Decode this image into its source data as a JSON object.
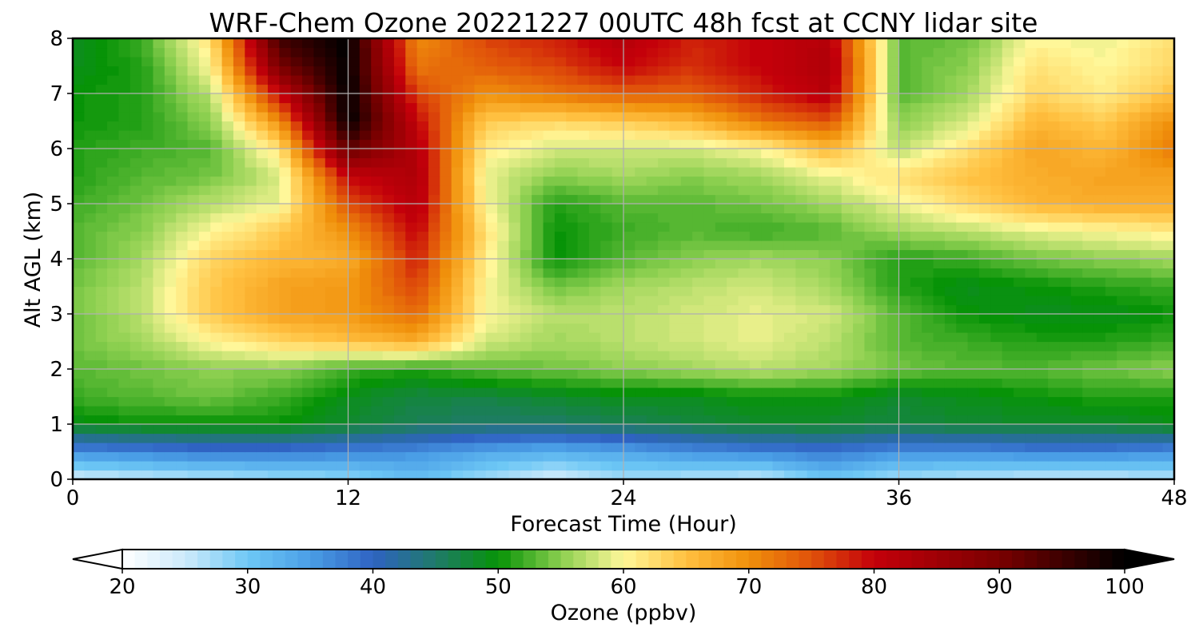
{
  "chart_data": {
    "type": "heatmap",
    "title": "WRF-Chem Ozone  20221227 00UTC 48h fcst at CCNY lidar site",
    "xlabel": "Forecast Time (Hour)",
    "ylabel": "Alt AGL (km)",
    "xlim": [
      0,
      48
    ],
    "ylim": [
      0,
      8
    ],
    "x_ticks": [
      0,
      12,
      24,
      36,
      48
    ],
    "y_ticks": [
      0,
      1,
      2,
      3,
      4,
      5,
      6,
      7,
      8
    ],
    "grid": true,
    "z_label": "Ozone  (ppbv)",
    "z_range": [
      20,
      100
    ],
    "colorbar": {
      "orientation": "horizontal",
      "placement": "bottom",
      "extend": "both",
      "ticks": [
        20,
        30,
        40,
        50,
        60,
        70,
        80,
        90,
        100
      ],
      "label": "Ozone  (ppbv)",
      "color_stops": [
        {
          "v": 20,
          "c": "#ffffff"
        },
        {
          "v": 25,
          "c": "#cdeafa"
        },
        {
          "v": 30,
          "c": "#6ec8f5"
        },
        {
          "v": 35,
          "c": "#4a9ee6"
        },
        {
          "v": 40,
          "c": "#2f63c2"
        },
        {
          "v": 45,
          "c": "#1f7a6a"
        },
        {
          "v": 50,
          "c": "#079307"
        },
        {
          "v": 55,
          "c": "#8bcf4f"
        },
        {
          "v": 60,
          "c": "#fff799"
        },
        {
          "v": 65,
          "c": "#ffc040"
        },
        {
          "v": 70,
          "c": "#f0900b"
        },
        {
          "v": 75,
          "c": "#e0520a"
        },
        {
          "v": 80,
          "c": "#c4000a"
        },
        {
          "v": 90,
          "c": "#7a0000"
        },
        {
          "v": 100,
          "c": "#000000"
        }
      ]
    },
    "x": [
      0,
      3,
      6,
      9,
      12,
      15,
      18,
      21,
      24,
      27,
      30,
      33,
      36,
      39,
      42,
      45,
      48
    ],
    "y": [
      0,
      0.5,
      1,
      1.5,
      2,
      2.5,
      3,
      3.5,
      4,
      4.5,
      5,
      5.5,
      6,
      6.5,
      7,
      7.5,
      8
    ],
    "z": [
      [
        24,
        25,
        26,
        27,
        28,
        31,
        27,
        24,
        27,
        26,
        25,
        30,
        27,
        26,
        25,
        25,
        26
      ],
      [
        36,
        37,
        38,
        38,
        37,
        36,
        34,
        33,
        34,
        36,
        37,
        38,
        36,
        36,
        37,
        37,
        36
      ],
      [
        49,
        50,
        50,
        50,
        48,
        46,
        45,
        45,
        46,
        47,
        48,
        48,
        47,
        48,
        48,
        48,
        49
      ],
      [
        52,
        53,
        54,
        52,
        49,
        47,
        47,
        48,
        49,
        49,
        50,
        50,
        48,
        49,
        50,
        51,
        51
      ],
      [
        53,
        54,
        55,
        55,
        52,
        51,
        53,
        54,
        55,
        56,
        57,
        56,
        54,
        53,
        53,
        54,
        55
      ],
      [
        54,
        56,
        60,
        63,
        65,
        67,
        58,
        56,
        57,
        58,
        59,
        57,
        53,
        52,
        51,
        51,
        52
      ],
      [
        54,
        57,
        64,
        68,
        69,
        73,
        60,
        57,
        57,
        58,
        59,
        58,
        53,
        50,
        49,
        49,
        50
      ],
      [
        54,
        57,
        64,
        68,
        69,
        76,
        60,
        54,
        56,
        57,
        58,
        56,
        51,
        49,
        50,
        51,
        52
      ],
      [
        53,
        56,
        63,
        66,
        67,
        78,
        61,
        50,
        53,
        55,
        56,
        55,
        51,
        52,
        54,
        55,
        56
      ],
      [
        53,
        55,
        60,
        64,
        70,
        80,
        62,
        50,
        52,
        53,
        52,
        53,
        56,
        57,
        59,
        60,
        61
      ],
      [
        52,
        54,
        57,
        59,
        75,
        82,
        60,
        51,
        53,
        53,
        54,
        56,
        59,
        63,
        66,
        67,
        67
      ],
      [
        51,
        53,
        54,
        58,
        80,
        83,
        59,
        55,
        56,
        55,
        56,
        59,
        62,
        65,
        67,
        68,
        68
      ],
      [
        51,
        52,
        53,
        62,
        92,
        82,
        61,
        58,
        58,
        58,
        60,
        66,
        57,
        62,
        68,
        66,
        72
      ],
      [
        50,
        51,
        55,
        70,
        100,
        80,
        64,
        63,
        64,
        66,
        72,
        75,
        55,
        58,
        66,
        64,
        70
      ],
      [
        50,
        51,
        57,
        80,
        100,
        76,
        70,
        72,
        74,
        74,
        78,
        82,
        53,
        56,
        63,
        61,
        65
      ],
      [
        49,
        51,
        60,
        90,
        100,
        72,
        74,
        76,
        80,
        77,
        80,
        83,
        53,
        55,
        62,
        60,
        63
      ],
      [
        49,
        52,
        62,
        95,
        100,
        70,
        76,
        78,
        82,
        78,
        80,
        82,
        53,
        54,
        60,
        59,
        62
      ]
    ]
  }
}
